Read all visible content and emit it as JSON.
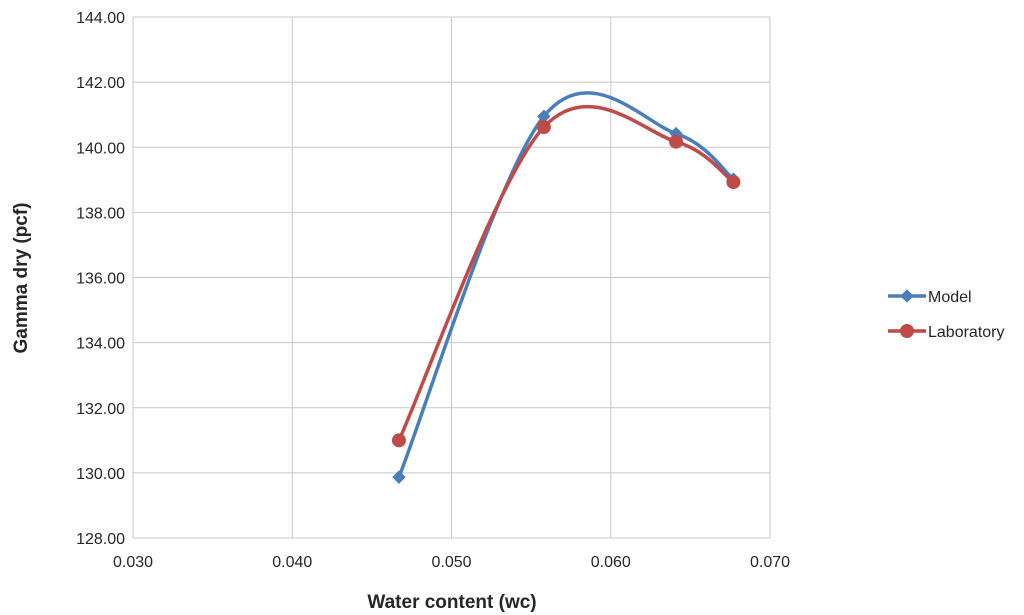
{
  "chart_data": {
    "type": "line",
    "title": "",
    "xlabel": "Water content (wc)",
    "ylabel": "Gamma dry (pcf)",
    "xlim": [
      0.03,
      0.07
    ],
    "ylim": [
      128.0,
      144.0
    ],
    "x_ticks": [
      "0.030",
      "0.040",
      "0.050",
      "0.060",
      "0.070"
    ],
    "y_ticks": [
      "128.00",
      "130.00",
      "132.00",
      "134.00",
      "136.00",
      "138.00",
      "140.00",
      "142.00",
      "144.00"
    ],
    "grid": true,
    "smooth": true,
    "legend_position": "right",
    "series": [
      {
        "name": "Model",
        "color": "#4a7ebb",
        "marker": "diamond",
        "x": [
          0.0467,
          0.0558,
          0.0641,
          0.0677
        ],
        "y": [
          129.87,
          140.95,
          140.42,
          139.02
        ]
      },
      {
        "name": "Laboratory",
        "color": "#be4b48",
        "marker": "circle",
        "x": [
          0.0467,
          0.0558,
          0.0641,
          0.0677
        ],
        "y": [
          131.0,
          140.62,
          140.17,
          138.93
        ]
      }
    ]
  }
}
